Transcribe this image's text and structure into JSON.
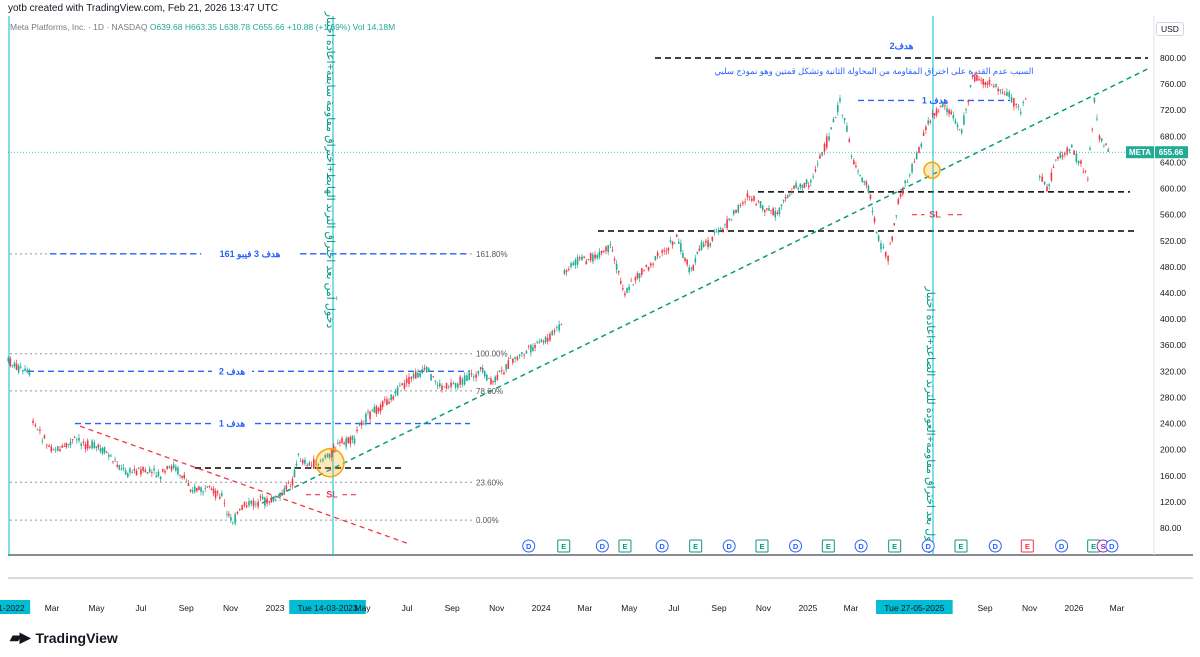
{
  "header": {
    "credit": "yotb created with TradingView.com, Feb 21, 2026 13:47 UTC"
  },
  "legend": {
    "name": "Meta Platforms, Inc. · 1D · NASDAQ",
    "open": "O639.68",
    "high": "H663.35",
    "low": "L638.78",
    "close": "C655.66",
    "change": "+10.88 (+1.69%)",
    "volume": "Vol 14.18M"
  },
  "currency": "USD",
  "price_tag": {
    "symbol": "META",
    "value": "655.66"
  },
  "brand": {
    "name": "TradingView",
    "logo": "tradingview-logo-icon"
  },
  "colors": {
    "up": "#22ab94",
    "down": "#f23645",
    "blue_line": "#2962ff",
    "cyan_line": "#00bcd4",
    "trend_green": "#089981",
    "trend_red": "#f23645",
    "circle": "#f7a600",
    "axis_highlight": "#00bcd4"
  },
  "chart_data": {
    "type": "line",
    "title": "Meta Platforms, Inc. · 1D · NASDAQ",
    "y_ticks": [
      80,
      120,
      160,
      200,
      240,
      280,
      320,
      360,
      400,
      440,
      480,
      520,
      560,
      600,
      640,
      680,
      720,
      760,
      800
    ],
    "ylim": [
      60,
      820
    ],
    "x_tick_labels": [
      "01-2022",
      "Mar",
      "May",
      "Jul",
      "Sep",
      "Nov",
      "2023",
      "Tue 14-03-2023",
      "May",
      "Jul",
      "Sep",
      "Nov",
      "2024",
      "Mar",
      "May",
      "Jul",
      "Sep",
      "Nov",
      "2025",
      "Mar",
      "Tue 27-05-2025",
      "Sep",
      "Nov",
      "2026",
      "Mar"
    ],
    "x_tick_dates": [
      "2022-01-01",
      "2022-03-01",
      "2022-05-01",
      "2022-07-01",
      "2022-09-01",
      "2022-11-01",
      "2023-01-01",
      "2023-03-14",
      "2023-05-01",
      "2023-07-01",
      "2023-09-01",
      "2023-11-01",
      "2024-01-01",
      "2024-03-01",
      "2024-05-01",
      "2024-07-01",
      "2024-09-01",
      "2024-11-01",
      "2025-01-01",
      "2025-03-01",
      "2025-05-27",
      "2025-09-01",
      "2025-11-01",
      "2026-01-01",
      "2026-03-01"
    ],
    "highlighted_dates": [
      "Tue 14-03-2023",
      "Tue 27-05-2025"
    ],
    "series": [
      {
        "x": [
          "2021-12-31",
          "2022-01-20",
          "2022-02-01",
          "2022-02-03",
          "2022-02-25",
          "2022-03-15",
          "2022-04-01",
          "2022-04-28",
          "2022-05-15",
          "2022-06-10",
          "2022-07-01",
          "2022-07-28",
          "2022-08-15",
          "2022-09-10",
          "2022-09-30",
          "2022-10-20",
          "2022-10-27",
          "2022-11-04",
          "2022-11-20",
          "2022-12-15",
          "2023-01-05",
          "2023-01-25",
          "2023-02-02",
          "2023-02-20",
          "2023-03-14",
          "2023-03-31",
          "2023-04-20",
          "2023-04-27",
          "2023-05-20",
          "2023-06-15",
          "2023-07-10",
          "2023-07-28",
          "2023-08-18",
          "2023-09-15",
          "2023-10-10",
          "2023-10-27",
          "2023-11-20",
          "2023-12-15",
          "2024-01-10",
          "2024-02-01",
          "2024-02-02",
          "2024-02-20",
          "2024-03-15",
          "2024-04-05",
          "2024-04-25",
          "2024-05-15",
          "2024-06-15",
          "2024-07-05",
          "2024-07-25",
          "2024-08-05",
          "2024-08-20",
          "2024-09-15",
          "2024-10-10",
          "2024-10-31",
          "2024-11-20",
          "2024-12-10",
          "2025-01-05",
          "2025-01-30",
          "2025-02-14",
          "2025-03-05",
          "2025-03-25",
          "2025-04-08",
          "2025-04-21",
          "2025-05-05",
          "2025-05-27",
          "2025-06-15",
          "2025-07-05",
          "2025-07-31",
          "2025-08-15",
          "2025-09-10",
          "2025-10-01",
          "2025-10-20",
          "2025-10-30",
          "2025-11-15",
          "2025-11-25",
          "2025-12-10",
          "2025-12-29",
          "2026-01-20",
          "2026-01-29",
          "2026-02-05",
          "2026-02-20"
        ],
        "y": [
          336,
          320,
          316,
          240,
          205,
          200,
          215,
          205,
          195,
          165,
          168,
          160,
          175,
          140,
          136,
          131,
          100,
          90,
          115,
          120,
          124,
          152,
          189,
          175,
          190,
          208,
          215,
          240,
          262,
          285,
          312,
          320,
          295,
          305,
          320,
          302,
          335,
          352,
          370,
          394,
          470,
          490,
          495,
          510,
          440,
          470,
          500,
          525,
          470,
          510,
          520,
          550,
          590,
          570,
          560,
          600,
          610,
          680,
          735,
          640,
          600,
          520,
          495,
          580,
          640,
          700,
          730,
          690,
          770,
          760,
          745,
          720,
          740,
          620,
          600,
          650,
          660,
          620,
          735,
          680,
          655.66
        ],
        "name": ""
      }
    ],
    "horizontal_levels": [
      {
        "price": 800,
        "style": "black-dashed",
        "label": "هدف2"
      },
      {
        "price": 735,
        "style": "blue-dashed",
        "label": "هدف 1"
      },
      {
        "price": 595,
        "style": "black-dashed",
        "label": ""
      },
      {
        "price": 535,
        "style": "black-dashed",
        "label": ""
      },
      {
        "price": 560,
        "style": "red-dashed",
        "label": "SL"
      },
      {
        "price": 500,
        "style": "blue-dashed",
        "label": "هدف 3 فيبو 161"
      },
      {
        "price": 320,
        "style": "blue-dashed",
        "label": "هدف 2"
      },
      {
        "price": 240,
        "style": "blue-dashed",
        "label": "هدف 1"
      },
      {
        "price": 172,
        "style": "black-dashed",
        "label": ""
      },
      {
        "price": 131,
        "style": "red-dashed",
        "label": "SL"
      }
    ],
    "fibonacci": [
      {
        "label": "161.80%",
        "price": 500
      },
      {
        "label": "100.00%",
        "price": 347
      },
      {
        "label": "78.60%",
        "price": 290
      },
      {
        "label": "23.60%",
        "price": 150
      },
      {
        "label": "0.00%",
        "price": 92
      }
    ],
    "annotations": {
      "vertical_text_1": "دخول آمن بعد اختراق الترند الهابط+اختراق مقاومة سابقة+اعادة اختبار",
      "vertical_text_2": "دخول بعد اختراق مقاومة+العودة للترند الصاعد+اعادة اختبار",
      "top_note": "السبب عدم القدرة على اختراق المقاومة من المحاولة الثانية وتشكل قمتين وهو نموذج سلبي"
    },
    "events": [
      {
        "date": "2023-12-15",
        "type": "D"
      },
      {
        "date": "2024-02-01",
        "type": "E"
      },
      {
        "date": "2024-03-25",
        "type": "D"
      },
      {
        "date": "2024-04-25",
        "type": "E"
      },
      {
        "date": "2024-06-15",
        "type": "D"
      },
      {
        "date": "2024-07-31",
        "type": "E"
      },
      {
        "date": "2024-09-15",
        "type": "D"
      },
      {
        "date": "2024-10-30",
        "type": "E"
      },
      {
        "date": "2024-12-15",
        "type": "D"
      },
      {
        "date": "2025-01-29",
        "type": "E"
      },
      {
        "date": "2025-03-15",
        "type": "D"
      },
      {
        "date": "2025-04-30",
        "type": "E"
      },
      {
        "date": "2025-06-15",
        "type": "D"
      },
      {
        "date": "2025-07-30",
        "type": "E"
      },
      {
        "date": "2025-09-15",
        "type": "D"
      },
      {
        "date": "2025-10-29",
        "type": "E"
      },
      {
        "date": "2025-12-15",
        "type": "D"
      },
      {
        "date": "2026-01-28",
        "type": "E"
      },
      {
        "date": "2026-02-10",
        "type": "S"
      },
      {
        "date": "2026-02-22",
        "type": "D"
      }
    ]
  }
}
